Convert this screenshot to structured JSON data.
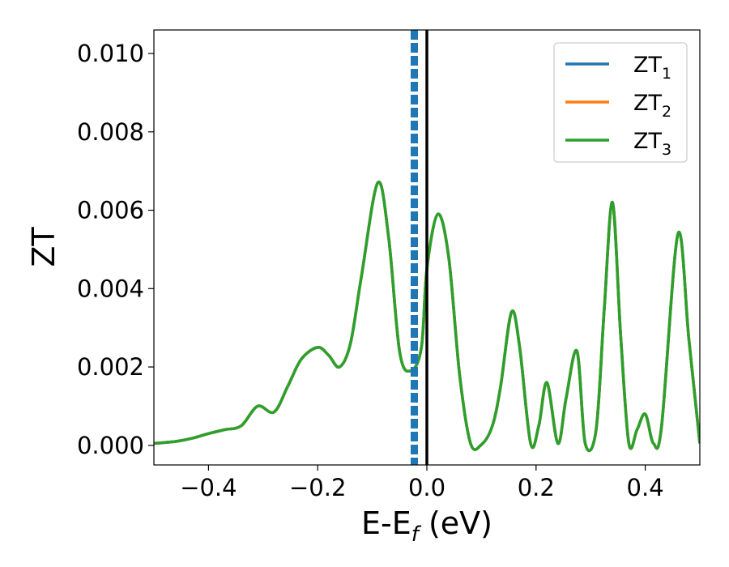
{
  "chart_data": {
    "type": "line",
    "title": "",
    "xlabel": {
      "main": "E-E",
      "sub": "f",
      "unit": " (eV)"
    },
    "ylabel": "ZT",
    "xlim": [
      -0.5,
      0.5
    ],
    "ylim": [
      -0.0005,
      0.0106
    ],
    "xticks": [
      -0.4,
      -0.2,
      0.0,
      0.2,
      0.4
    ],
    "xtick_labels": [
      "−0.4",
      "−0.2",
      "0.0",
      "0.2",
      "0.4"
    ],
    "yticks": [
      0.0,
      0.002,
      0.004,
      0.006,
      0.008,
      0.01
    ],
    "ytick_labels": [
      "0.000",
      "0.002",
      "0.004",
      "0.006",
      "0.008",
      "0.010"
    ],
    "grid": false,
    "legend_position": "top-right",
    "vlines": [
      {
        "x": -0.023,
        "style": "dashed",
        "color": "#1f77b4"
      },
      {
        "x": 0.0,
        "style": "solid",
        "color": "#000000"
      }
    ],
    "series": [
      {
        "name": "ZT",
        "name_sub": "1",
        "color": "#1f77b4",
        "x": [
          -0.5,
          -0.46,
          -0.43,
          -0.4,
          -0.37,
          -0.34,
          -0.31,
          -0.28,
          -0.255,
          -0.23,
          -0.2,
          -0.18,
          -0.16,
          -0.14,
          -0.12,
          -0.09,
          -0.07,
          -0.05,
          -0.03,
          -0.01,
          0.0,
          0.02,
          0.04,
          0.06,
          0.08,
          0.1,
          0.12,
          0.135,
          0.155,
          0.17,
          0.19,
          0.205,
          0.22,
          0.24,
          0.255,
          0.275,
          0.29,
          0.31,
          0.325,
          0.34,
          0.355,
          0.37,
          0.385,
          0.4,
          0.415,
          0.43,
          0.46,
          0.48,
          0.5
        ],
        "y": [
          5e-05,
          0.0001,
          0.00018,
          0.0003,
          0.0004,
          0.0005,
          0.001,
          0.00085,
          0.0015,
          0.0022,
          0.0025,
          0.0023,
          0.002,
          0.0026,
          0.0043,
          0.0067,
          0.0053,
          0.0024,
          0.0019,
          0.0025,
          0.0045,
          0.0059,
          0.0048,
          0.0018,
          5e-05,
          2e-05,
          0.0005,
          0.0015,
          0.0034,
          0.0025,
          5e-05,
          0.0005,
          0.0016,
          5e-05,
          0.0012,
          0.0024,
          5e-05,
          0.0004,
          0.0035,
          0.0062,
          0.0028,
          5e-05,
          0.0004,
          0.0008,
          5e-05,
          0.0005,
          0.0054,
          0.0027,
          5e-05
        ]
      },
      {
        "name": "ZT",
        "name_sub": "2",
        "color": "#ff7f0e",
        "x": [
          -0.5,
          -0.46,
          -0.43,
          -0.4,
          -0.37,
          -0.34,
          -0.31,
          -0.28,
          -0.255,
          -0.23,
          -0.2,
          -0.18,
          -0.16,
          -0.14,
          -0.12,
          -0.09,
          -0.07,
          -0.05,
          -0.03,
          -0.01,
          0.0,
          0.02,
          0.04,
          0.06,
          0.08,
          0.1,
          0.12,
          0.135,
          0.155,
          0.17,
          0.19,
          0.205,
          0.22,
          0.24,
          0.255,
          0.275,
          0.29,
          0.31,
          0.325,
          0.34,
          0.355,
          0.37,
          0.385,
          0.4,
          0.415,
          0.43,
          0.46,
          0.48,
          0.5
        ],
        "y": [
          5e-05,
          0.0001,
          0.00018,
          0.0003,
          0.0004,
          0.0005,
          0.001,
          0.00085,
          0.0015,
          0.0022,
          0.0025,
          0.0023,
          0.002,
          0.0026,
          0.0043,
          0.0067,
          0.0053,
          0.0024,
          0.0019,
          0.0025,
          0.0045,
          0.0059,
          0.0048,
          0.0018,
          5e-05,
          2e-05,
          0.0005,
          0.0015,
          0.0034,
          0.0025,
          5e-05,
          0.0005,
          0.0016,
          5e-05,
          0.0012,
          0.0024,
          5e-05,
          0.0004,
          0.0035,
          0.0062,
          0.0028,
          5e-05,
          0.0004,
          0.0008,
          5e-05,
          0.0005,
          0.0054,
          0.0027,
          5e-05
        ]
      },
      {
        "name": "ZT",
        "name_sub": "3",
        "color": "#2ca02c",
        "x": [
          -0.5,
          -0.46,
          -0.43,
          -0.4,
          -0.37,
          -0.34,
          -0.31,
          -0.28,
          -0.255,
          -0.23,
          -0.2,
          -0.18,
          -0.16,
          -0.14,
          -0.12,
          -0.09,
          -0.07,
          -0.05,
          -0.03,
          -0.01,
          0.0,
          0.02,
          0.04,
          0.06,
          0.08,
          0.1,
          0.12,
          0.135,
          0.155,
          0.17,
          0.19,
          0.205,
          0.22,
          0.24,
          0.255,
          0.275,
          0.29,
          0.31,
          0.325,
          0.34,
          0.355,
          0.37,
          0.385,
          0.4,
          0.415,
          0.43,
          0.46,
          0.48,
          0.5
        ],
        "y": [
          5e-05,
          0.0001,
          0.00018,
          0.0003,
          0.0004,
          0.0005,
          0.001,
          0.00085,
          0.0015,
          0.0022,
          0.0025,
          0.0023,
          0.002,
          0.0026,
          0.0043,
          0.0067,
          0.0053,
          0.0024,
          0.0019,
          0.0025,
          0.0045,
          0.0059,
          0.0048,
          0.0018,
          5e-05,
          2e-05,
          0.0005,
          0.0015,
          0.0034,
          0.0025,
          5e-05,
          0.0005,
          0.0016,
          5e-05,
          0.0012,
          0.0024,
          5e-05,
          0.0004,
          0.0035,
          0.0062,
          0.0028,
          5e-05,
          0.0004,
          0.0008,
          5e-05,
          0.0005,
          0.0054,
          0.0027,
          5e-05
        ]
      }
    ]
  }
}
